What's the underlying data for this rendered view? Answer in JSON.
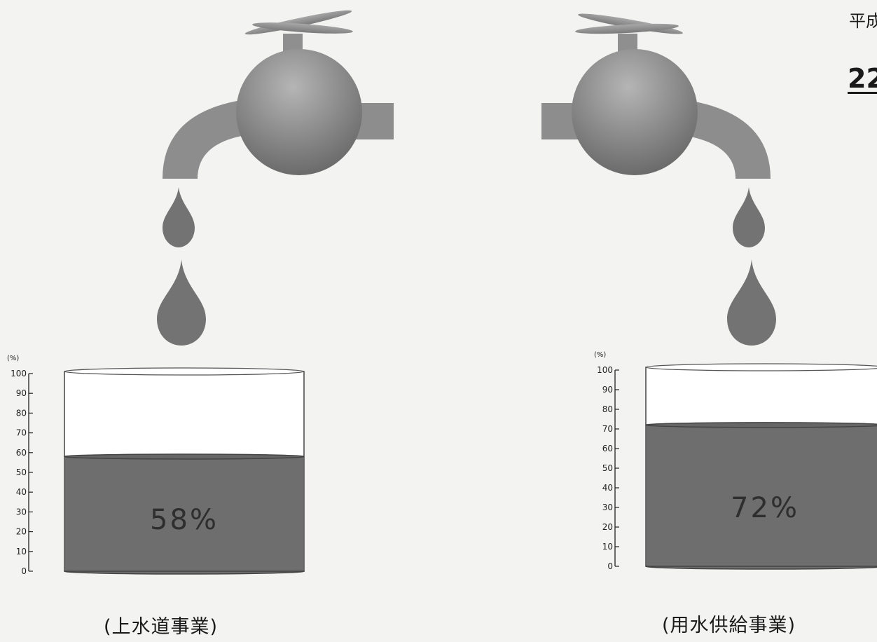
{
  "corner": {
    "heading": "平成",
    "year": "22"
  },
  "chart_data": [
    {
      "type": "bar",
      "caption": "(上水道事業)",
      "value": 58,
      "value_label": "58%",
      "unit": "(%)",
      "ylim": [
        0,
        100
      ],
      "yticks": [
        "0",
        "10",
        "20",
        "30",
        "40",
        "50",
        "60",
        "70",
        "80",
        "90",
        "100"
      ]
    },
    {
      "type": "bar",
      "caption": "(用水供給事業)",
      "value": 72,
      "value_label": "72%",
      "unit": "(%)",
      "ylim": [
        0,
        100
      ],
      "yticks": [
        "0",
        "10",
        "20",
        "30",
        "40",
        "50",
        "60",
        "70",
        "80",
        "90",
        "100"
      ]
    }
  ],
  "colors": {
    "liquid": "#6e6e6e",
    "liquid_edge": "#444444",
    "tap": "#909090",
    "drop": "#747474"
  }
}
